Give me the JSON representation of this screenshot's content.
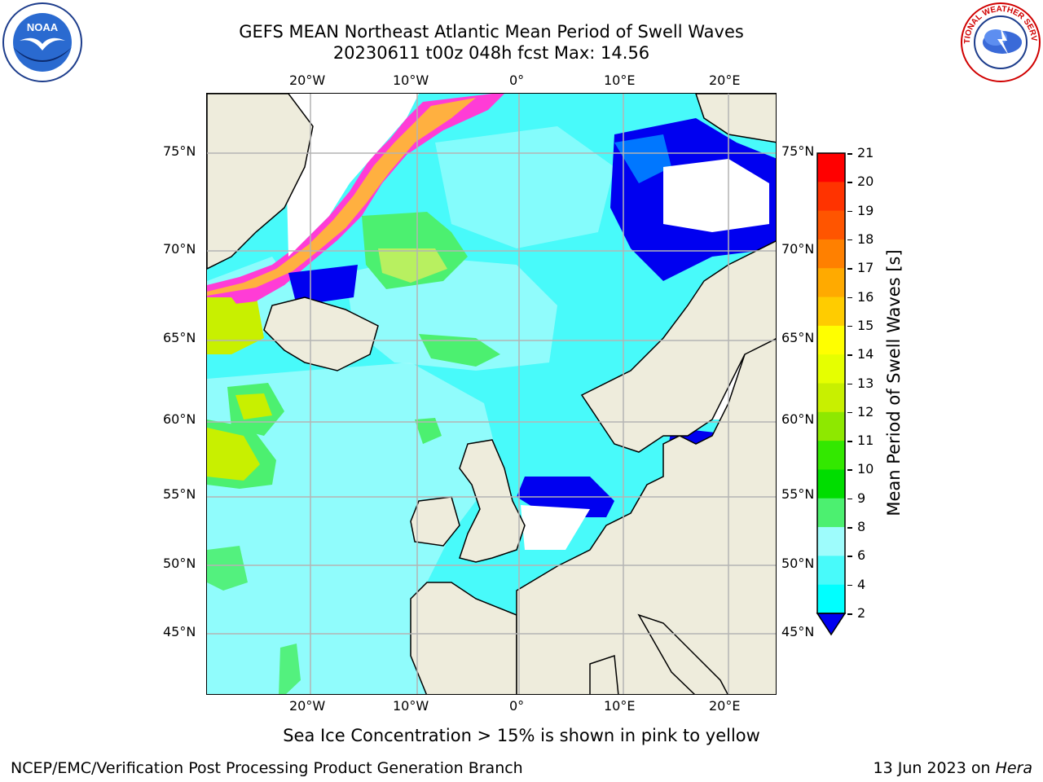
{
  "title": {
    "line1": "GEFS MEAN Northeast Atlantic Mean Period of Swell Waves",
    "line2": "20230611 t00z 048h fcst   Max: 14.56"
  },
  "logos": {
    "left": {
      "icon": "noaa-logo-icon",
      "text": "NOAA"
    },
    "right": {
      "icon": "nws-logo-icon",
      "text": "NATIONAL WEATHER SERVICE"
    }
  },
  "map": {
    "lat_labels": [
      "75°N",
      "70°N",
      "65°N",
      "60°N",
      "55°N",
      "50°N",
      "45°N"
    ],
    "lon_labels": [
      "20°W",
      "10°W",
      "0°",
      "10°E",
      "20°E"
    ],
    "colors": {
      "land": "#eeecdc",
      "ocean_light_cyan": "#9efcfc",
      "ocean_cyan": "#48fafa",
      "blue": "#0000f0",
      "mid_blue": "#0077ff",
      "white_ice": "#ffffff",
      "green": "#4cf070",
      "yellow_green": "#c8f000",
      "pink": "#ff3cd6",
      "orange_ice": "#ffb040"
    }
  },
  "colorbar": {
    "label": "Mean Period of Swell Waves [s]",
    "ticks": [
      "21",
      "20",
      "19",
      "18",
      "17",
      "16",
      "15",
      "14",
      "13",
      "12",
      "11",
      "10",
      "9",
      "8",
      "6",
      "4",
      "2"
    ],
    "colors": [
      "#ff0000",
      "#ff3300",
      "#ff5500",
      "#ff8000",
      "#ffaa00",
      "#ffcc00",
      "#ffff00",
      "#e6ff00",
      "#c8f000",
      "#8ee800",
      "#33e800",
      "#00dd00",
      "#4cf070",
      "#9efcfc",
      "#48fafa",
      "#00ffff",
      "#00d8ff",
      "#0077ff",
      "#0000f0"
    ]
  },
  "footer": {
    "ice_note": "Sea Ice Concentration > 15% is shown in pink to yellow",
    "credit": "NCEP/EMC/Verification Post Processing Product Generation Branch",
    "stamp_prefix": "13 Jun 2023 on ",
    "stamp_host": "Hera"
  }
}
